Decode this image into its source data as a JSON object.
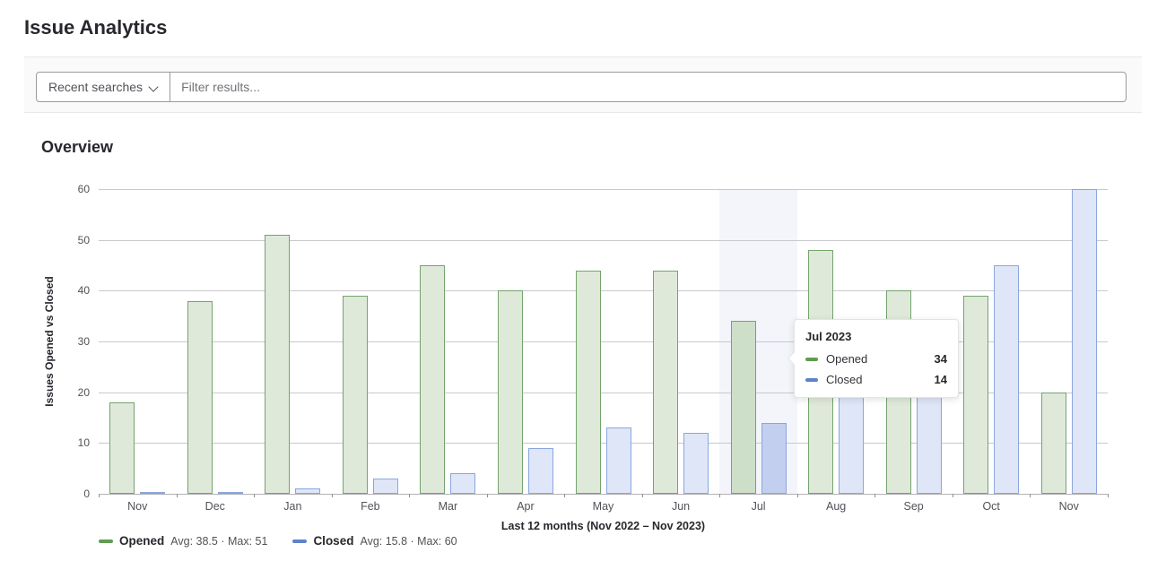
{
  "page": {
    "title": "Issue Analytics"
  },
  "filter_bar": {
    "recent_searches_label": "Recent searches",
    "filter_placeholder": "Filter results..."
  },
  "section": {
    "heading": "Overview"
  },
  "chart_data": {
    "type": "bar",
    "title": "Overview",
    "categories": [
      "Nov",
      "Dec",
      "Jan",
      "Feb",
      "Mar",
      "Apr",
      "May",
      "Jun",
      "Jul",
      "Aug",
      "Sep",
      "Oct",
      "Nov"
    ],
    "series": [
      {
        "name": "Opened",
        "values": [
          18,
          38,
          51,
          39,
          45,
          40,
          44,
          44,
          34,
          48,
          40,
          39,
          20
        ],
        "color": "#609c52",
        "border": "#74a46c",
        "fill": "#dfe9da",
        "fill_hover": "#cddfc8"
      },
      {
        "name": "Closed",
        "values": [
          0,
          0,
          1,
          3,
          4,
          9,
          13,
          12,
          14,
          24,
          20,
          45,
          60
        ],
        "color": "#5f82ca",
        "border": "#8aa6e0",
        "fill": "#dfe6f7",
        "fill_hover": "#c3cfee"
      }
    ],
    "xlabel": "Last 12 months (Nov 2022 – Nov 2023)",
    "ylabel": "Issues Opened vs Closed",
    "ylim": [
      0,
      60
    ],
    "ytick_step": 10,
    "grid": true,
    "legend_position": "bottom",
    "highlight_index": 8
  },
  "legend": {
    "opened_label": "Opened",
    "opened_stats": "Avg: 38.5 · Max: 51",
    "closed_label": "Closed",
    "closed_stats": "Avg: 15.8 · Max: 60"
  },
  "tooltip": {
    "title": "Jul 2023",
    "rows": [
      {
        "label": "Opened",
        "value": "34"
      },
      {
        "label": "Closed",
        "value": "14"
      }
    ]
  },
  "colors": {
    "opened": "#609c52",
    "closed": "#5f82ca",
    "gridline": "#c9c9cc",
    "panel_bg": "#fafafa",
    "text_dark": "#28272d",
    "text_gray": "#535158"
  }
}
